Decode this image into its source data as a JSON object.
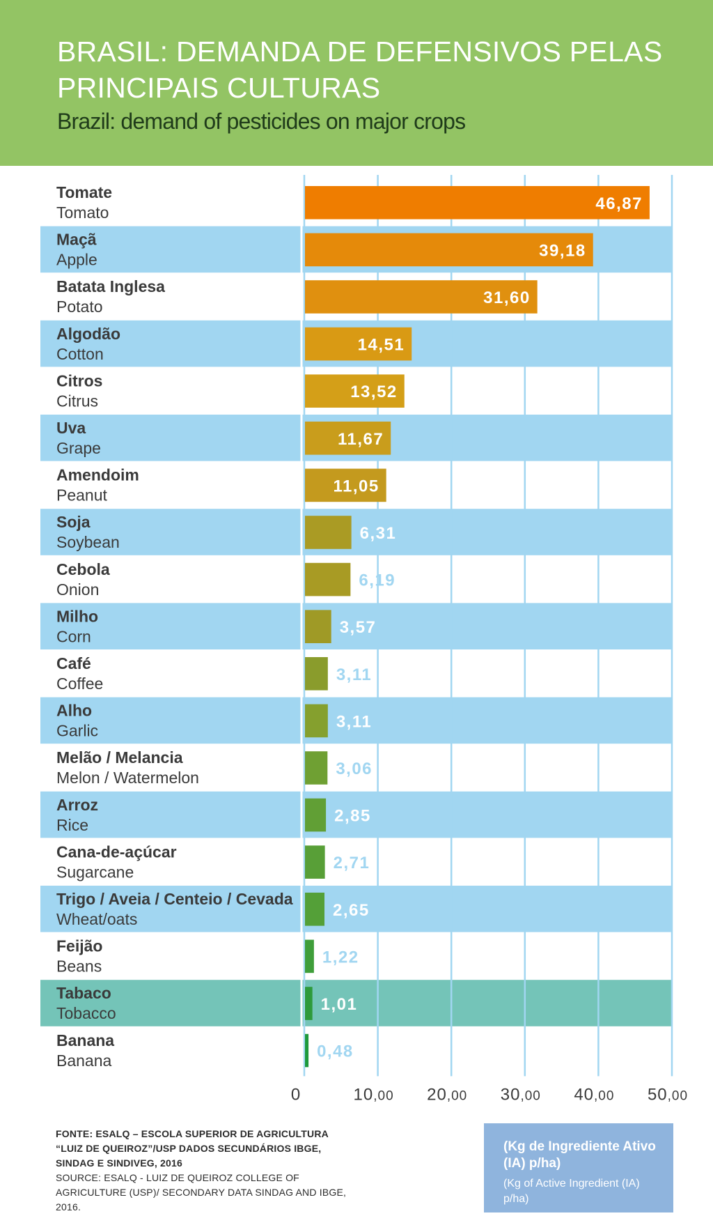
{
  "header": {
    "title_pt": "BRASIL: DEMANDA DE DEFENSIVOS PELAS PRINCIPAIS CULTURAS",
    "title_en": "Brazil: demand of pesticides on major crops"
  },
  "colors": {
    "header_bg": "#93c464",
    "row_highlight": "#a1d6f1",
    "row_tobacco": "#74c4b8",
    "gridline": "#a1d6f1",
    "label_on_bar": "#ffffff",
    "label_outside": "#a1d6f1",
    "unit_box": "#8fb4dd"
  },
  "chart_data": {
    "type": "bar",
    "orientation": "horizontal",
    "categories_pt": [
      "Tomate",
      "Maçã",
      "Batata Inglesa",
      "Algodão",
      "Citros",
      "Uva",
      "Amendoim",
      "Soja",
      "Cebola",
      "Milho",
      "Café",
      "Alho",
      "Melão / Melancia",
      "Arroz",
      "Cana-de-açúcar",
      "Trigo / Aveia / Centeio / Cevada",
      "Feijão",
      "Tabaco",
      "Banana"
    ],
    "categories_en": [
      "Tomato",
      "Apple",
      "Potato",
      "Cotton",
      "Citrus",
      "Grape",
      "Peanut",
      "Soybean",
      "Onion",
      "Corn",
      "Coffee",
      "Garlic",
      "Melon / Watermelon",
      "Rice",
      "Sugarcane",
      "Wheat/oats",
      "Beans",
      "Tobacco",
      "Banana"
    ],
    "values": [
      46.87,
      39.18,
      31.6,
      14.51,
      13.52,
      11.67,
      11.05,
      6.31,
      6.19,
      3.57,
      3.11,
      3.11,
      3.06,
      2.85,
      2.71,
      2.65,
      1.22,
      1.01,
      0.48
    ],
    "value_labels": [
      "46,87",
      "39,18",
      "31,60",
      "14,51",
      "13,52",
      "11,67",
      "11,05",
      "6,31",
      "6,19",
      "3,57",
      "3,11",
      "3,11",
      "3,06",
      "2,85",
      "2,71",
      "2,65",
      "1,22",
      "1,01",
      "0,48"
    ],
    "bar_colors": [
      "#ef7d00",
      "#e58a0a",
      "#e0900f",
      "#d99a14",
      "#d49f18",
      "#c99d1c",
      "#c49a1e",
      "#aa9b24",
      "#a89b24",
      "#9f9a26",
      "#8a9c2c",
      "#85a02e",
      "#6fa033",
      "#619f35",
      "#589f37",
      "#54a038",
      "#3f9e3a",
      "#2e9a3b",
      "#1e9a3c"
    ],
    "row_bands": [
      "none",
      "blue",
      "none",
      "blue",
      "none",
      "blue",
      "none",
      "blue",
      "none",
      "blue",
      "none",
      "blue",
      "none",
      "blue",
      "none",
      "blue",
      "none",
      "teal",
      "none"
    ],
    "xlim": [
      0,
      50
    ],
    "ticks": [
      0,
      10,
      20,
      30,
      40,
      50
    ],
    "tick_labels": [
      {
        "num": "0",
        "dec": ""
      },
      {
        "num": "10",
        "dec": ",00"
      },
      {
        "num": "20",
        "dec": ",00"
      },
      {
        "num": "30",
        "dec": ",00"
      },
      {
        "num": "40",
        "dec": ",00"
      },
      {
        "num": "50",
        "dec": ",00"
      }
    ],
    "grid": true
  },
  "footer": {
    "source_pt": "FONTE: ESALQ – ESCOLA SUPERIOR DE AGRICULTURA “LUIZ DE QUEIROZ”/USP DADOS SECUNDÁRIOS IBGE, SINDAG E SINDIVEG, 2016",
    "source_en": "SOURCE: ESALQ - LUIZ DE QUEIROZ COLLEGE OF AGRICULTURE (USP)/ SECONDARY DATA SINDAG AND IBGE, 2016.",
    "unit_pt": "(Kg de Ingrediente Ativo (IA) p/ha)",
    "unit_en": "(Kg of Active Ingredient (IA) p/ha)"
  }
}
